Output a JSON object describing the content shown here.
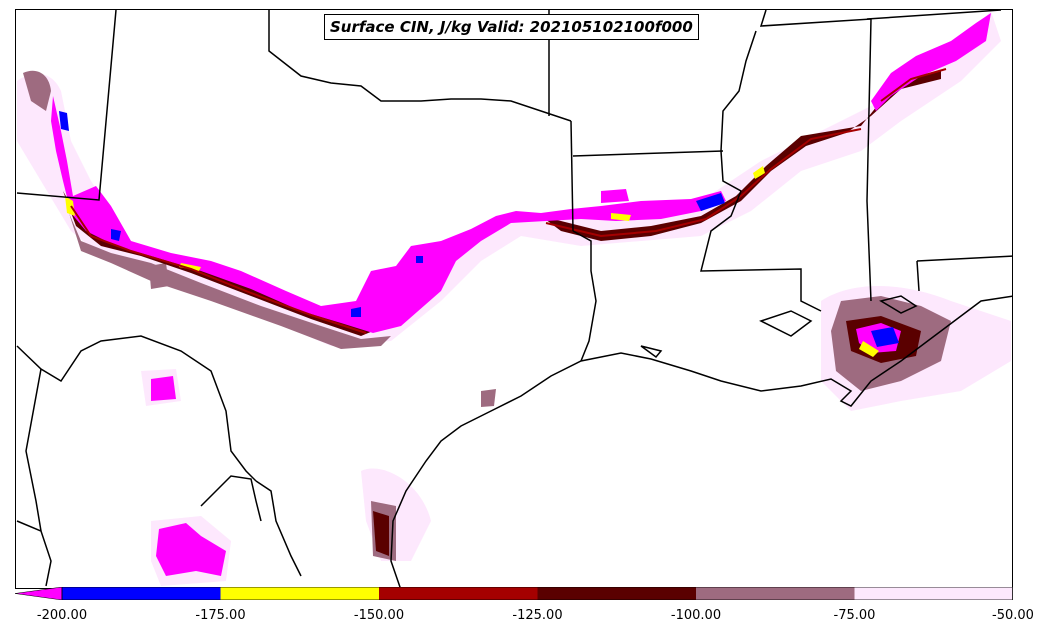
{
  "title": "Surface CIN, J/kg Valid: 202105102100f000",
  "colorbar": {
    "ticks": [
      "-200.00",
      "-175.00",
      "-150.00",
      "-125.00",
      "-100.00",
      "-75.00",
      "-50.00"
    ],
    "bins": [
      {
        "from": -200,
        "to": -175,
        "color": "#0000ff"
      },
      {
        "from": -175,
        "to": -150,
        "color": "#ffff00"
      },
      {
        "from": -150,
        "to": -125,
        "color": "#a50000"
      },
      {
        "from": -125,
        "to": -100,
        "color": "#5a0000"
      },
      {
        "from": -100,
        "to": -75,
        "color": "#9e6b80"
      },
      {
        "from": -75,
        "to": -50,
        "color": "#fde8fd"
      }
    ],
    "under_color": "#ff00ff"
  },
  "colors": {
    "under": "#ff00ff",
    "blue": "#0000ff",
    "yellow": "#ffff00",
    "red": "#a50000",
    "darkred": "#5a0000",
    "mauve": "#9e6b80",
    "pale": "#fde8fd",
    "border": "#000000"
  }
}
